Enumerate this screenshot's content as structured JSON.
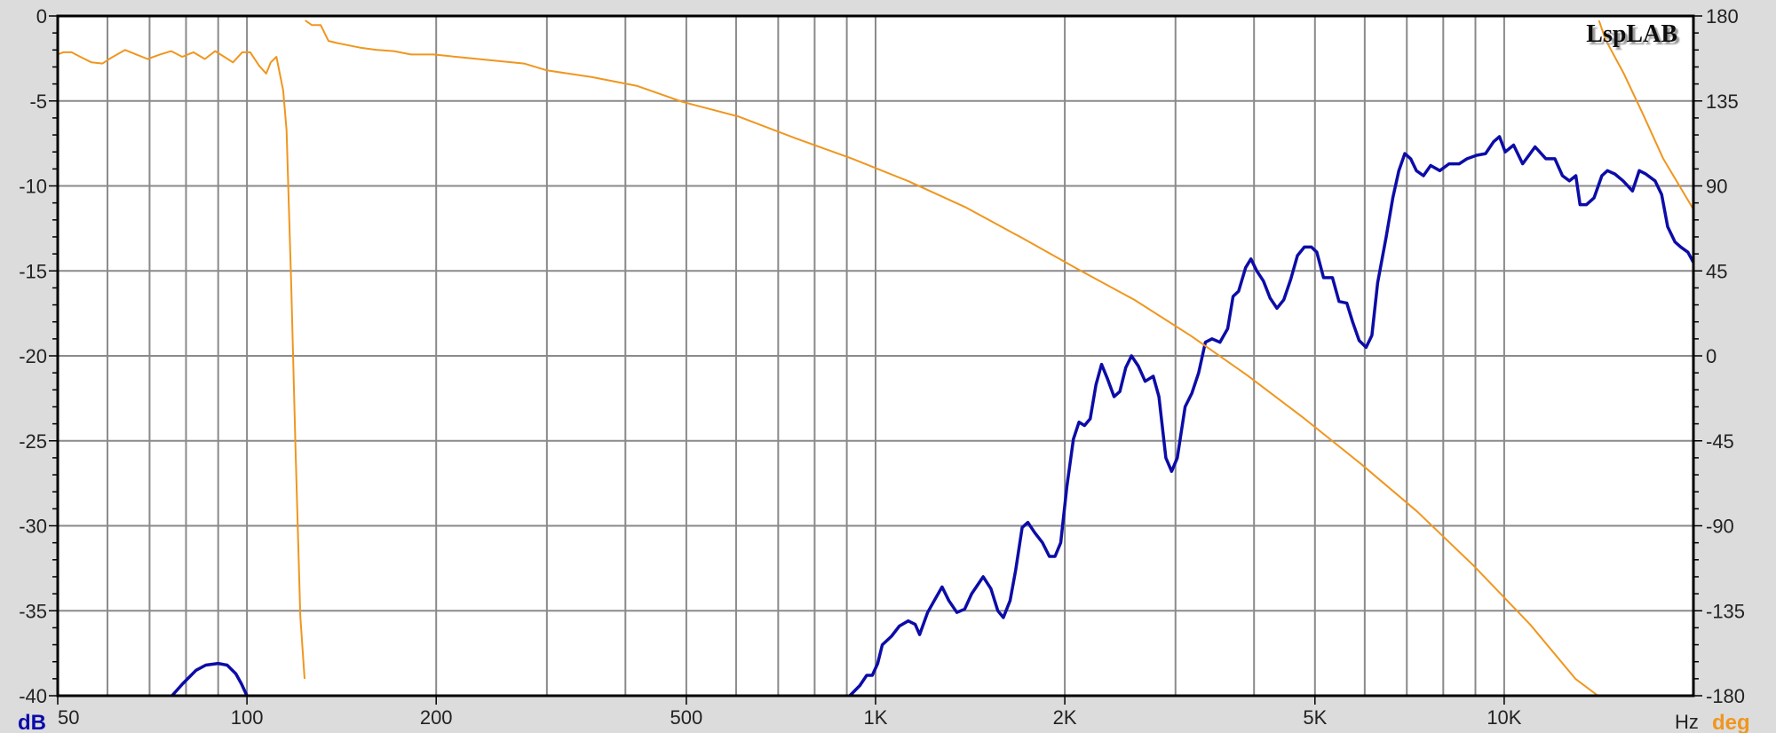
{
  "chart_data": {
    "type": "line",
    "logo": "LspLAB",
    "x_scale": "log",
    "xlim": [
      50,
      20000
    ],
    "x_ticks": [
      {
        "v": 50,
        "label": "50"
      },
      {
        "v": 100,
        "label": "100"
      },
      {
        "v": 200,
        "label": "200"
      },
      {
        "v": 500,
        "label": "500"
      },
      {
        "v": 1000,
        "label": "1K"
      },
      {
        "v": 2000,
        "label": "2K"
      },
      {
        "v": 5000,
        "label": "5K"
      },
      {
        "v": 10000,
        "label": "10K"
      }
    ],
    "x_unit": "Hz",
    "x_grid": [
      50,
      60,
      70,
      80,
      90,
      100,
      200,
      300,
      400,
      500,
      600,
      700,
      800,
      900,
      1000,
      2000,
      3000,
      4000,
      5000,
      6000,
      7000,
      8000,
      9000,
      10000,
      20000
    ],
    "y_left": {
      "unit": "dB",
      "lim": [
        -40,
        0
      ],
      "ticks": [
        0,
        -5,
        -10,
        -15,
        -20,
        -25,
        -30,
        -35,
        -40
      ],
      "color": "#0c0ca8"
    },
    "y_right": {
      "unit": "deg",
      "lim": [
        -180,
        180
      ],
      "ticks": [
        180,
        135,
        90,
        45,
        0,
        -45,
        -90,
        -135,
        -180
      ],
      "color": "#f0961e"
    },
    "grid": true,
    "series": [
      {
        "axis": "left",
        "color": "#0c0ca8",
        "segments": [
          [
            [
              76,
              -40
            ],
            [
              79,
              -39.3
            ],
            [
              83,
              -38.5
            ],
            [
              86,
              -38.2
            ],
            [
              90,
              -38.1
            ],
            [
              93,
              -38.2
            ],
            [
              96,
              -38.7
            ],
            [
              98,
              -39.3
            ],
            [
              100,
              -40
            ]
          ],
          [
            [
              910,
              -40
            ],
            [
              944,
              -39.4
            ],
            [
              968,
              -38.8
            ],
            [
              988,
              -38.8
            ],
            [
              1008,
              -38.1
            ],
            [
              1025,
              -37.0
            ],
            [
              1060,
              -36.5
            ],
            [
              1091,
              -35.9
            ],
            [
              1127,
              -35.6
            ],
            [
              1156,
              -35.8
            ],
            [
              1175,
              -36.4
            ],
            [
              1210,
              -35.1
            ],
            [
              1240,
              -34.4
            ],
            [
              1276,
              -33.6
            ],
            [
              1308,
              -34.4
            ],
            [
              1347,
              -35.1
            ],
            [
              1386,
              -34.9
            ],
            [
              1422,
              -34.0
            ],
            [
              1483,
              -33.0
            ],
            [
              1526,
              -33.7
            ],
            [
              1565,
              -35.0
            ],
            [
              1597,
              -35.4
            ],
            [
              1637,
              -34.4
            ],
            [
              1671,
              -32.6
            ],
            [
              1711,
              -30.1
            ],
            [
              1747,
              -29.8
            ],
            [
              1791,
              -30.4
            ],
            [
              1843,
              -31.0
            ],
            [
              1890,
              -31.8
            ],
            [
              1930,
              -31.8
            ],
            [
              1970,
              -31.0
            ],
            [
              2015,
              -27.7
            ],
            [
              2064,
              -24.9
            ],
            [
              2107,
              -23.9
            ],
            [
              2150,
              -24.1
            ],
            [
              2195,
              -23.7
            ],
            [
              2242,
              -21.7
            ],
            [
              2288,
              -20.5
            ],
            [
              2336,
              -21.3
            ],
            [
              2396,
              -22.4
            ],
            [
              2447,
              -22.1
            ],
            [
              2500,
              -20.7
            ],
            [
              2553,
              -20.0
            ],
            [
              2618,
              -20.6
            ],
            [
              2685,
              -21.5
            ],
            [
              2765,
              -21.2
            ],
            [
              2823,
              -22.4
            ],
            [
              2896,
              -26.0
            ],
            [
              2958,
              -26.8
            ],
            [
              3020,
              -26.0
            ],
            [
              3108,
              -23.0
            ],
            [
              3185,
              -22.2
            ],
            [
              3265,
              -21.0
            ],
            [
              3347,
              -19.2
            ],
            [
              3430,
              -19.0
            ],
            [
              3530,
              -19.2
            ],
            [
              3632,
              -18.4
            ],
            [
              3705,
              -16.5
            ],
            [
              3780,
              -16.2
            ],
            [
              3880,
              -14.8
            ],
            [
              3955,
              -14.3
            ],
            [
              4040,
              -15.0
            ],
            [
              4140,
              -15.6
            ],
            [
              4243,
              -16.6
            ],
            [
              4350,
              -17.2
            ],
            [
              4460,
              -16.7
            ],
            [
              4575,
              -15.5
            ],
            [
              4690,
              -14.1
            ],
            [
              4810,
              -13.6
            ],
            [
              4935,
              -13.6
            ],
            [
              5035,
              -13.9
            ],
            [
              5160,
              -15.4
            ],
            [
              5330,
              -15.4
            ],
            [
              5460,
              -16.8
            ],
            [
              5620,
              -16.9
            ],
            [
              5740,
              -18.0
            ],
            [
              5880,
              -19.1
            ],
            [
              6030,
              -19.5
            ],
            [
              6160,
              -18.8
            ],
            [
              6290,
              -15.7
            ],
            [
              6490,
              -13.0
            ],
            [
              6650,
              -10.7
            ],
            [
              6800,
              -9.1
            ],
            [
              6950,
              -8.1
            ],
            [
              7100,
              -8.4
            ],
            [
              7250,
              -9.1
            ],
            [
              7440,
              -9.4
            ],
            [
              7640,
              -8.8
            ],
            [
              7900,
              -9.1
            ],
            [
              8170,
              -8.7
            ],
            [
              8480,
              -8.7
            ],
            [
              8730,
              -8.4
            ],
            [
              9040,
              -8.2
            ],
            [
              9340,
              -8.1
            ],
            [
              9620,
              -7.4
            ],
            [
              9830,
              -7.1
            ],
            [
              10040,
              -8.0
            ],
            [
              10350,
              -7.6
            ],
            [
              10700,
              -8.7
            ],
            [
              11200,
              -7.7
            ],
            [
              11650,
              -8.4
            ],
            [
              12040,
              -8.4
            ],
            [
              12380,
              -9.4
            ],
            [
              12700,
              -9.7
            ],
            [
              13000,
              -9.4
            ],
            [
              13200,
              -11.1
            ],
            [
              13520,
              -11.1
            ],
            [
              13900,
              -10.7
            ],
            [
              14300,
              -9.4
            ],
            [
              14600,
              -9.1
            ],
            [
              15000,
              -9.3
            ],
            [
              15460,
              -9.7
            ],
            [
              16000,
              -10.3
            ],
            [
              16400,
              -9.1
            ],
            [
              16800,
              -9.3
            ],
            [
              17380,
              -9.7
            ],
            [
              17800,
              -10.5
            ],
            [
              18200,
              -12.4
            ],
            [
              18700,
              -13.3
            ],
            [
              19100,
              -13.6
            ],
            [
              19600,
              -13.9
            ],
            [
              20000,
              -14.5
            ]
          ]
        ]
      },
      {
        "axis": "right",
        "color": "#f0961e",
        "segments": [
          [
            [
              50,
              159.6
            ],
            [
              51,
              160.8
            ],
            [
              52.6,
              160.8
            ],
            [
              54.3,
              158.4
            ],
            [
              56.6,
              155.4
            ],
            [
              58.9,
              154.8
            ],
            [
              60.8,
              157.8
            ],
            [
              64,
              162.0
            ],
            [
              66.7,
              159.6
            ],
            [
              69.5,
              157.2
            ],
            [
              72.7,
              159.6
            ],
            [
              75.8,
              161.4
            ],
            [
              78.9,
              158.4
            ],
            [
              82.2,
              160.8
            ],
            [
              85.7,
              157.2
            ],
            [
              89,
              161.4
            ],
            [
              92,
              158.4
            ],
            [
              95,
              155.4
            ],
            [
              98.3,
              160.8
            ],
            [
              101.2,
              160.8
            ],
            [
              104.6,
              153.6
            ],
            [
              107.3,
              149.5
            ],
            [
              109.1,
              155.4
            ],
            [
              111.4,
              158.4
            ],
            [
              114.2,
              140.5
            ],
            [
              115.6,
              119.5
            ],
            [
              117.6,
              38.6
            ],
            [
              119.5,
              -51.2
            ],
            [
              121.6,
              -138
            ],
            [
              123.5,
              -171
            ]
          ],
          [
            [
              123.8,
              177.6
            ],
            [
              126.8,
              175.2
            ],
            [
              131,
              175.2
            ],
            [
              134.8,
              166.8
            ],
            [
              139.4,
              165.6
            ],
            [
              145.3,
              164.4
            ],
            [
              151.4,
              163.2
            ],
            [
              161,
              162
            ],
            [
              171.3,
              161.4
            ],
            [
              182.3,
              159.6
            ],
            [
              198,
              159.6
            ],
            [
              215,
              158.4
            ],
            [
              243,
              156.6
            ],
            [
              276,
              154.8
            ],
            [
              300,
              151.2
            ],
            [
              354,
              147.6
            ],
            [
              418,
              142.9
            ],
            [
              493,
              134.5
            ],
            [
              606,
              126.7
            ],
            [
              745,
              115.3
            ],
            [
              916,
              104.5
            ],
            [
              1128,
              92.5
            ],
            [
              1388,
              78.8
            ],
            [
              1707,
              62.6
            ],
            [
              2100,
              45.8
            ],
            [
              2583,
              29.6
            ],
            [
              3178,
              10.5
            ],
            [
              3909,
              -10.5
            ],
            [
              4809,
              -33.2
            ],
            [
              5916,
              -57.2
            ],
            [
              7268,
              -82.4
            ],
            [
              8940,
              -111.1
            ],
            [
              11000,
              -142.3
            ],
            [
              12980,
              -171
            ],
            [
              14100,
              -180
            ]
          ],
          [
            [
              14150,
              177.6
            ],
            [
              14500,
              167.4
            ],
            [
              15500,
              149.5
            ],
            [
              16600,
              128.5
            ],
            [
              17900,
              104.5
            ],
            [
              20000,
              77.6
            ]
          ]
        ]
      }
    ]
  }
}
